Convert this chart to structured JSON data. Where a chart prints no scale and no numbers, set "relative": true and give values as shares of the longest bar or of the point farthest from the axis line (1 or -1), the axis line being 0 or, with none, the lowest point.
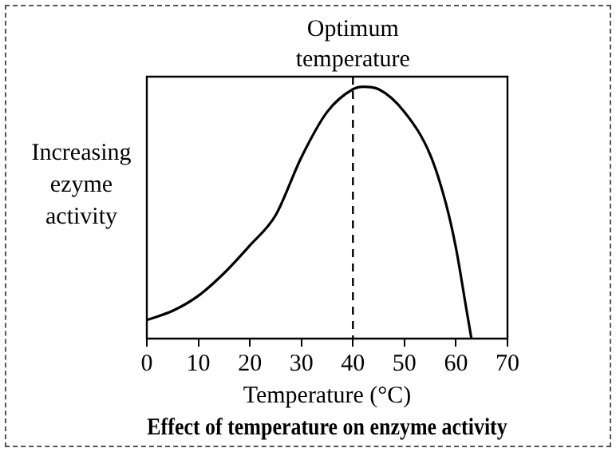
{
  "chart_data": {
    "type": "line",
    "title": "Effect of temperature on enzyme activity",
    "xlabel": "Temperature (°C)",
    "ylabel": "Increasing ezyme activity",
    "relative": true,
    "x": [
      0,
      5,
      10,
      15,
      20,
      25,
      30,
      35,
      40,
      42,
      45,
      50,
      55,
      58,
      60,
      62,
      63
    ],
    "series": [
      {
        "color": "#000000",
        "values": [
          0.074,
          0.11,
          0.17,
          0.26,
          0.37,
          0.49,
          0.72,
          0.9,
          0.99,
          1,
          0.99,
          0.9,
          0.73,
          0.54,
          0.36,
          0.12,
          0
        ]
      }
    ],
    "xlim": [
      0,
      70
    ],
    "xticks": [
      0,
      10,
      20,
      30,
      40,
      50,
      60,
      70
    ],
    "ref_lines": [
      {
        "axis": "x",
        "value": 40,
        "label": "Optimum temperature",
        "line_style": "dashed",
        "color": "#000000"
      }
    ],
    "grid": false,
    "legend": false,
    "marker": "none",
    "line_style": "solid"
  }
}
